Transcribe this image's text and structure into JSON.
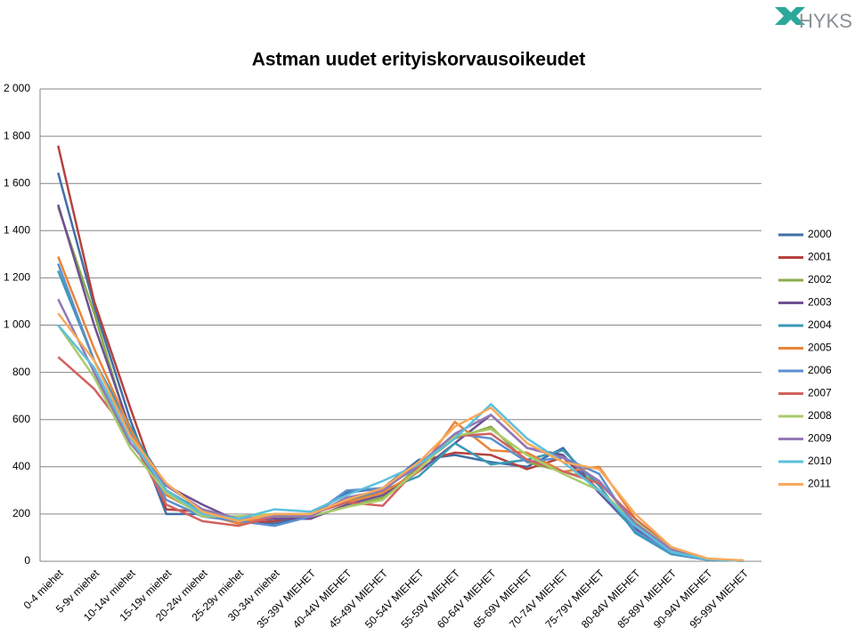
{
  "logo": "HYKS",
  "chart_data": {
    "type": "line",
    "title": "Astman uudet erityiskorvausoikeudet",
    "categories": [
      "0-4 miehet",
      "5-9v miehet",
      "10-14v miehet",
      "15-19v miehet",
      "20-24v miehet",
      "25-29v miehet",
      "30-34v miehet",
      "35-39V MIEHET",
      "40-44V MIEHET",
      "45-49V MIEHET",
      "50-54V MIEHET",
      "55-59V MIEHET",
      "60-64V MIEHET",
      "65-69V MIEHET",
      "70-74V MIEHET",
      "75-79V MIEHET",
      "80-84V MIEHET",
      "85-89V MIEHET",
      "90-94V MIEHET",
      "95-99V MIEHET"
    ],
    "ylim": [
      0,
      2000
    ],
    "yticks": [
      0,
      200,
      400,
      600,
      800,
      {
        "value": 1000,
        "label": "1 000"
      },
      {
        "value": 1200,
        "label": "1 200"
      },
      {
        "value": 1400,
        "label": "1 400"
      },
      {
        "value": 1600,
        "label": "1 600"
      },
      {
        "value": 1800,
        "label": "1 800"
      },
      {
        "value": 2000,
        "label": "2 000"
      }
    ],
    "grid": true,
    "legend": "right",
    "series": [
      {
        "name": "2000",
        "color": "#3f6fa8",
        "values": [
          1645,
          1080,
          600,
          200,
          200,
          170,
          160,
          195,
          290,
          310,
          430,
          450,
          420,
          400,
          480,
          290,
          130,
          40,
          8,
          3
        ]
      },
      {
        "name": "2001",
        "color": "#b5423f",
        "values": [
          1760,
          1100,
          650,
          220,
          210,
          160,
          170,
          200,
          260,
          300,
          420,
          460,
          450,
          390,
          440,
          300,
          150,
          50,
          10,
          3
        ]
      },
      {
        "name": "2002",
        "color": "#8aad48",
        "values": [
          1500,
          1050,
          540,
          300,
          210,
          180,
          180,
          190,
          230,
          270,
          400,
          520,
          570,
          420,
          380,
          340,
          160,
          45,
          8,
          2
        ]
      },
      {
        "name": "2003",
        "color": "#6e5191",
        "values": [
          1510,
          1000,
          560,
          320,
          240,
          170,
          180,
          180,
          240,
          280,
          380,
          500,
          620,
          480,
          450,
          290,
          140,
          40,
          7,
          2
        ]
      },
      {
        "name": "2004",
        "color": "#3a9ab4",
        "values": [
          1230,
          850,
          570,
          300,
          210,
          170,
          200,
          200,
          250,
          300,
          360,
          500,
          410,
          430,
          470,
          320,
          120,
          30,
          6,
          2
        ]
      },
      {
        "name": "2005",
        "color": "#e8843a",
        "values": [
          1290,
          900,
          560,
          280,
          200,
          160,
          190,
          200,
          250,
          290,
          380,
          590,
          470,
          460,
          380,
          400,
          180,
          60,
          10,
          3
        ]
      },
      {
        "name": "2006",
        "color": "#5b8fd0",
        "values": [
          1260,
          850,
          540,
          260,
          190,
          170,
          150,
          190,
          300,
          310,
          400,
          540,
          520,
          420,
          440,
          370,
          130,
          35,
          6,
          2
        ]
      },
      {
        "name": "2007",
        "color": "#d26260",
        "values": [
          865,
          730,
          530,
          240,
          170,
          150,
          190,
          200,
          250,
          235,
          400,
          530,
          540,
          430,
          380,
          330,
          180,
          50,
          9,
          2
        ]
      },
      {
        "name": "2008",
        "color": "#a9cb6a",
        "values": [
          1000,
          780,
          480,
          290,
          190,
          190,
          200,
          190,
          230,
          260,
          390,
          530,
          560,
          450,
          370,
          300,
          170,
          50,
          8,
          2
        ]
      },
      {
        "name": "2009",
        "color": "#9278b5",
        "values": [
          1110,
          800,
          500,
          320,
          220,
          180,
          190,
          190,
          270,
          300,
          410,
          540,
          620,
          480,
          440,
          340,
          160,
          50,
          9,
          3
        ]
      },
      {
        "name": "2010",
        "color": "#5cc0dc",
        "values": [
          1000,
          820,
          520,
          300,
          200,
          180,
          220,
          210,
          280,
          340,
          410,
          520,
          665,
          520,
          420,
          300,
          150,
          40,
          8,
          2
        ]
      },
      {
        "name": "2011",
        "color": "#f9a95a",
        "values": [
          1050,
          850,
          530,
          330,
          210,
          170,
          200,
          200,
          260,
          310,
          420,
          570,
          650,
          500,
          420,
          390,
          200,
          60,
          12,
          4
        ]
      }
    ]
  }
}
